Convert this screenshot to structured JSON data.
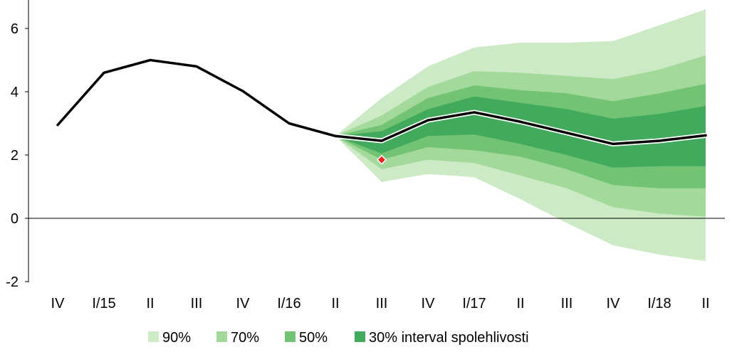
{
  "chart_data": {
    "type": "area",
    "categories": [
      "IV",
      "I/15",
      "II",
      "III",
      "IV",
      "I/16",
      "II",
      "III",
      "IV",
      "I/17",
      "II",
      "III",
      "IV",
      "I/18",
      "II"
    ],
    "ylim": [
      -2,
      7
    ],
    "yticks": [
      -2,
      0,
      2,
      4,
      6
    ],
    "ytick_labels": [
      "-2",
      "0",
      "2",
      "4",
      "6"
    ],
    "grid": false,
    "zero_line": true,
    "legend_position": "bottom",
    "legend": [
      "90%",
      "70%",
      "50%",
      "30% interval spolehlivosti"
    ],
    "series": [
      {
        "values": [
          2.95,
          4.6,
          5.0,
          4.8,
          4.02,
          3.0,
          2.6,
          2.45,
          3.1,
          3.35,
          3.05,
          2.7,
          2.35,
          2.45,
          2.62
        ]
      }
    ],
    "marker": {
      "category": "III",
      "value": 1.85,
      "color": "#e8231e"
    },
    "bands": {
      "start_category": "II",
      "categories": [
        "II",
        "III",
        "IV",
        "I/17",
        "II",
        "III",
        "IV",
        "I/18",
        "II"
      ],
      "90%": {
        "lower": [
          2.6,
          1.15,
          1.4,
          1.3,
          0.6,
          -0.15,
          -0.85,
          -1.15,
          -1.35
        ],
        "upper": [
          2.6,
          3.8,
          4.8,
          5.4,
          5.55,
          5.55,
          5.6,
          6.1,
          6.6
        ]
      },
      "70%": {
        "lower": [
          2.6,
          1.55,
          1.85,
          1.75,
          1.35,
          0.95,
          0.35,
          0.15,
          0.05
        ],
        "upper": [
          2.6,
          3.25,
          4.15,
          4.65,
          4.6,
          4.5,
          4.4,
          4.7,
          5.15
        ]
      },
      "50%": {
        "lower": [
          2.6,
          1.85,
          2.25,
          2.15,
          1.95,
          1.55,
          1.05,
          0.95,
          0.95
        ],
        "upper": [
          2.6,
          2.95,
          3.8,
          4.2,
          4.05,
          3.95,
          3.7,
          3.95,
          4.25
        ]
      },
      "30%": {
        "lower": [
          2.6,
          2.05,
          2.6,
          2.65,
          2.35,
          2.0,
          1.6,
          1.65,
          1.65
        ],
        "upper": [
          2.6,
          2.75,
          3.45,
          3.85,
          3.65,
          3.45,
          3.15,
          3.3,
          3.55
        ]
      }
    },
    "colors": {
      "band_90": "#cdeac6",
      "band_70": "#a3d99b",
      "band_50": "#73c374",
      "band_30": "#41aa5c",
      "line": "#000000",
      "line_highlight": "#ffffff"
    }
  }
}
